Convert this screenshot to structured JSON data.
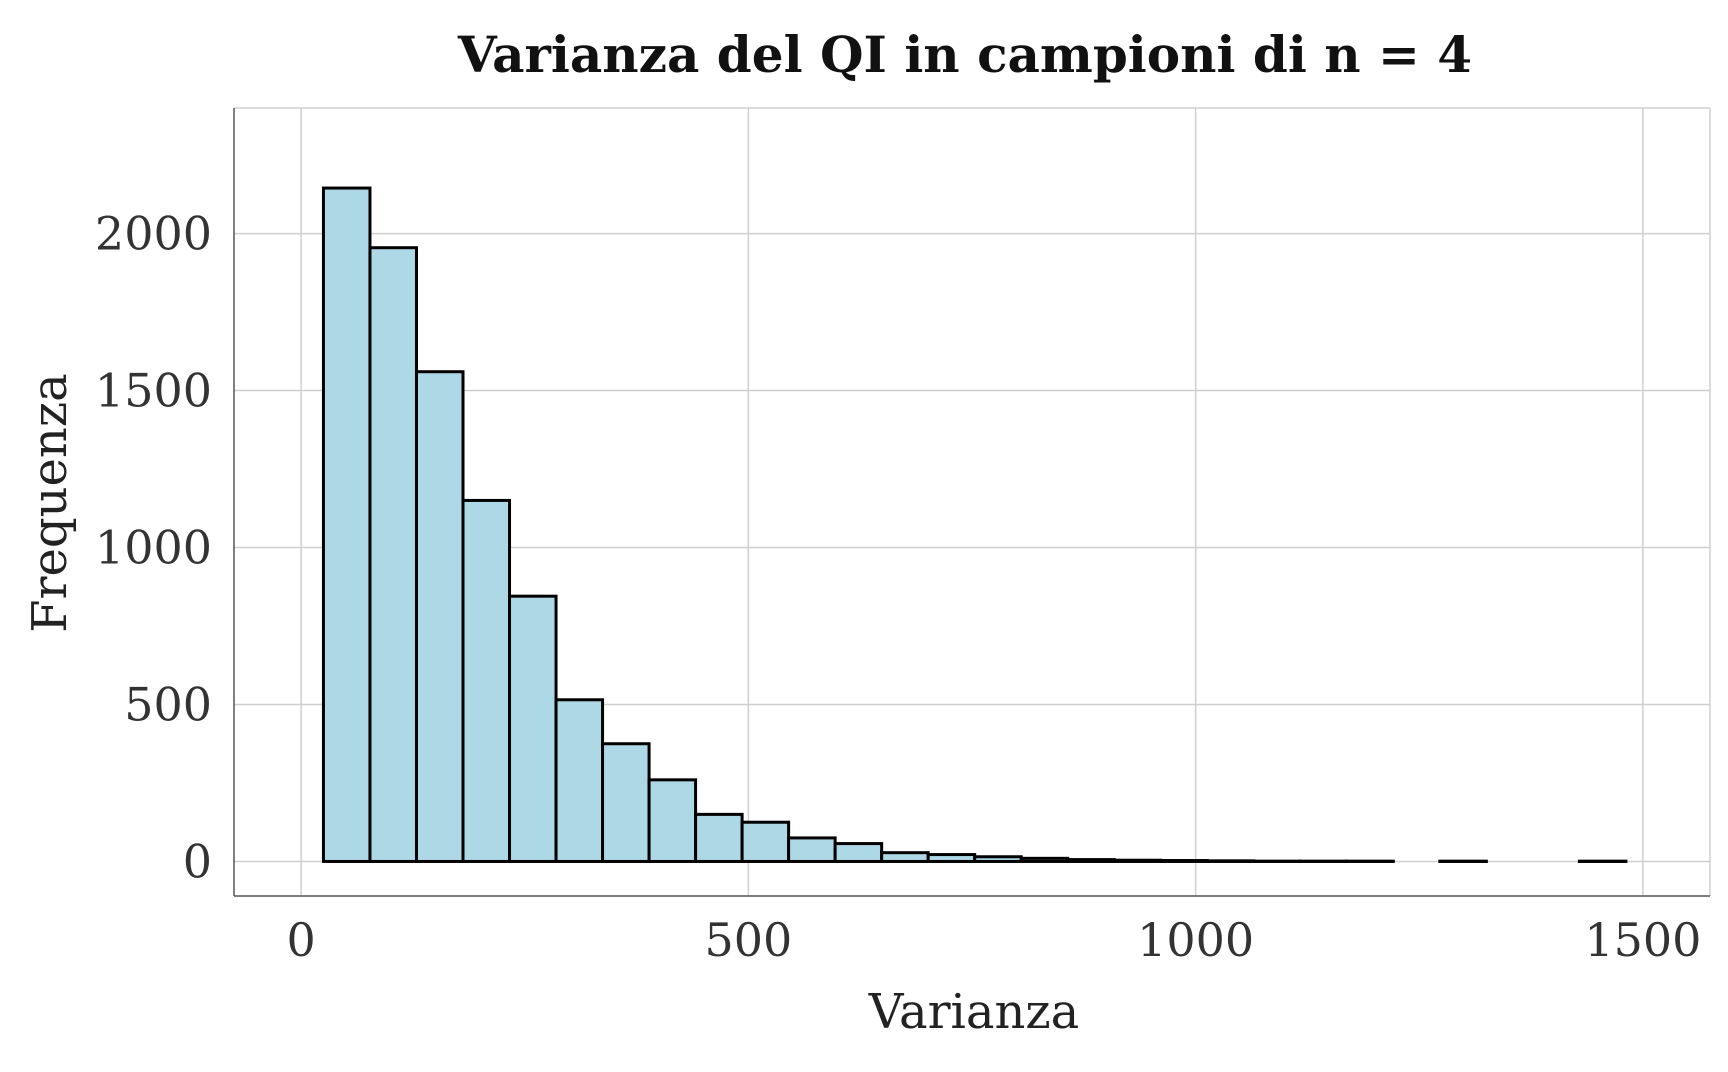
{
  "chart_data": {
    "type": "bar",
    "title": "Varianza del QI in campioni di n = 4",
    "xlabel": "Varianza",
    "ylabel": "Frequenza",
    "xlim": [
      -75,
      1575
    ],
    "ylim": [
      -110,
      2400
    ],
    "xticks": [
      0,
      500,
      1000,
      1500
    ],
    "yticks": [
      0,
      500,
      1000,
      1500,
      2000
    ],
    "grid": true,
    "legend": "none",
    "bar_fill": "#add8e6",
    "bar_edge": "#000000",
    "bins": [
      {
        "x0": 25,
        "x1": 77,
        "count": 2145
      },
      {
        "x0": 77,
        "x1": 129,
        "count": 1955
      },
      {
        "x0": 129,
        "x1": 181,
        "count": 1560
      },
      {
        "x0": 181,
        "x1": 233,
        "count": 1150
      },
      {
        "x0": 233,
        "x1": 285,
        "count": 845
      },
      {
        "x0": 285,
        "x1": 337,
        "count": 515
      },
      {
        "x0": 337,
        "x1": 389,
        "count": 375
      },
      {
        "x0": 389,
        "x1": 441,
        "count": 260
      },
      {
        "x0": 441,
        "x1": 493,
        "count": 150
      },
      {
        "x0": 493,
        "x1": 545,
        "count": 125
      },
      {
        "x0": 545,
        "x1": 597,
        "count": 75
      },
      {
        "x0": 597,
        "x1": 649,
        "count": 57
      },
      {
        "x0": 649,
        "x1": 701,
        "count": 28
      },
      {
        "x0": 701,
        "x1": 753,
        "count": 22
      },
      {
        "x0": 753,
        "x1": 805,
        "count": 15
      },
      {
        "x0": 805,
        "x1": 857,
        "count": 10
      },
      {
        "x0": 857,
        "x1": 909,
        "count": 6
      },
      {
        "x0": 909,
        "x1": 961,
        "count": 4
      },
      {
        "x0": 961,
        "x1": 1013,
        "count": 3
      },
      {
        "x0": 1013,
        "x1": 1065,
        "count": 2
      },
      {
        "x0": 1065,
        "x1": 1117,
        "count": 1
      },
      {
        "x0": 1117,
        "x1": 1169,
        "count": 1
      },
      {
        "x0": 1169,
        "x1": 1221,
        "count": 1
      },
      {
        "x0": 1221,
        "x1": 1273,
        "count": 0
      },
      {
        "x0": 1273,
        "x1": 1325,
        "count": 1
      },
      {
        "x0": 1325,
        "x1": 1377,
        "count": 0
      },
      {
        "x0": 1377,
        "x1": 1429,
        "count": 0
      },
      {
        "x0": 1429,
        "x1": 1481,
        "count": 1
      }
    ]
  }
}
